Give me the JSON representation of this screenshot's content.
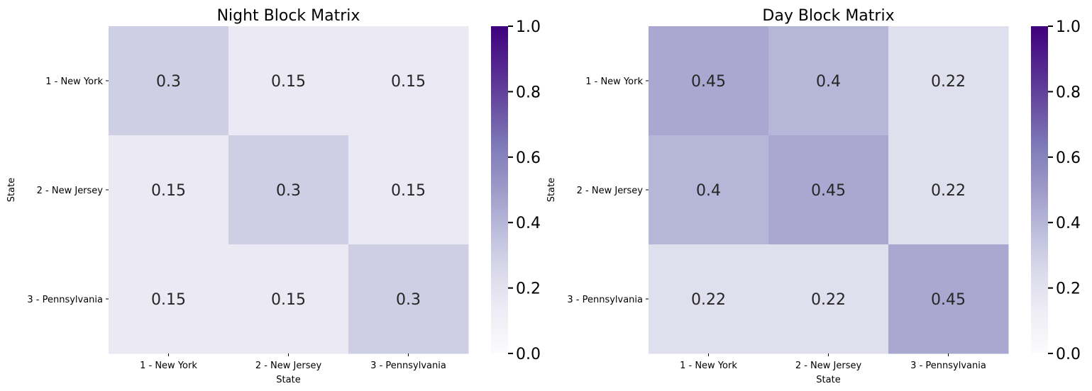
{
  "chart_data": [
    {
      "type": "heatmap",
      "title": "Night Block Matrix",
      "xlabel": "State",
      "ylabel": "State",
      "x_categories": [
        "1 - New York",
        "2 - New Jersey",
        "3 - Pennsylvania"
      ],
      "y_categories": [
        "1 - New York",
        "2 - New Jersey",
        "3 - Pennsylvania"
      ],
      "values": [
        [
          0.3,
          0.15,
          0.15
        ],
        [
          0.15,
          0.3,
          0.15
        ],
        [
          0.15,
          0.15,
          0.3
        ]
      ],
      "colorbar": {
        "range": [
          0,
          1
        ],
        "ticks": [
          "0.0",
          "0.2",
          "0.4",
          "0.6",
          "0.8",
          "1.0"
        ],
        "colormap": "Purples"
      }
    },
    {
      "type": "heatmap",
      "title": "Day Block Matrix",
      "xlabel": "State",
      "ylabel": "State",
      "x_categories": [
        "1 - New York",
        "2 - New Jersey",
        "3 - Pennsylvania"
      ],
      "y_categories": [
        "1 - New York",
        "2 - New Jersey",
        "3 - Pennsylvania"
      ],
      "values": [
        [
          0.45,
          0.4,
          0.22
        ],
        [
          0.4,
          0.45,
          0.22
        ],
        [
          0.22,
          0.22,
          0.45
        ]
      ],
      "colorbar": {
        "range": [
          0,
          1
        ],
        "ticks": [
          "0.0",
          "0.2",
          "0.4",
          "0.6",
          "0.8",
          "1.0"
        ],
        "colormap": "Purples"
      }
    }
  ]
}
